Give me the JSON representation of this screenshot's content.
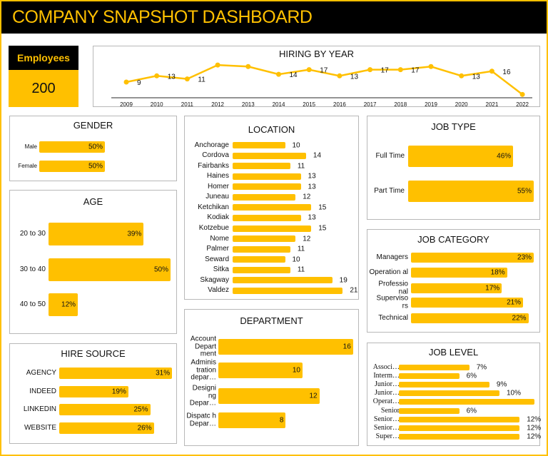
{
  "title": "COMPANY SNAPSHOT DASHBOARD",
  "accent": "#ffc000",
  "employees": {
    "label": "Employees",
    "value": "200"
  },
  "hiring": {
    "title": "HIRING BY YEAR",
    "years": [
      "2009",
      "2010",
      "2011",
      "2012",
      "2013",
      "2014",
      "2015",
      "2016",
      "2017",
      "2018",
      "2019",
      "2020",
      "2021",
      "2022"
    ],
    "values": [
      9,
      13,
      11,
      20,
      19,
      14,
      17,
      13,
      17,
      17,
      19,
      13,
      16,
      1
    ],
    "labels": [
      "9",
      "13",
      "11",
      "",
      "",
      "14",
      "17",
      "13",
      "17",
      "17",
      "",
      "13",
      "16",
      ""
    ]
  },
  "gender": {
    "title": "GENDER",
    "rows": [
      {
        "label": "Male",
        "value": 50,
        "text": "50%"
      },
      {
        "label": "Female",
        "value": 50,
        "text": "50%"
      }
    ]
  },
  "age": {
    "title": "AGE",
    "rows": [
      {
        "label": "20 to 30",
        "value": 39,
        "text": "39%"
      },
      {
        "label": "30 to 40",
        "value": 50,
        "text": "50%"
      },
      {
        "label": "40 to 50",
        "value": 12,
        "text": "12%"
      }
    ]
  },
  "hire_source": {
    "title": "HIRE SOURCE",
    "rows": [
      {
        "label": "AGENCY",
        "value": 31,
        "text": "31%"
      },
      {
        "label": "INDEED",
        "value": 19,
        "text": "19%"
      },
      {
        "label": "LINKEDIN",
        "value": 25,
        "text": "25%"
      },
      {
        "label": "WEBSITE",
        "value": 26,
        "text": "26%"
      }
    ]
  },
  "location": {
    "title": "LOCATION",
    "rows": [
      {
        "label": "Anchorage",
        "value": 10,
        "text": "10"
      },
      {
        "label": "Cordova",
        "value": 14,
        "text": "14"
      },
      {
        "label": "Fairbanks",
        "value": 11,
        "text": "11"
      },
      {
        "label": "Haines",
        "value": 13,
        "text": "13"
      },
      {
        "label": "Homer",
        "value": 13,
        "text": "13"
      },
      {
        "label": "Juneau",
        "value": 12,
        "text": "12"
      },
      {
        "label": "Ketchikan",
        "value": 15,
        "text": "15"
      },
      {
        "label": "Kodiak",
        "value": 13,
        "text": "13"
      },
      {
        "label": "Kotzebue",
        "value": 15,
        "text": "15"
      },
      {
        "label": "Nome",
        "value": 12,
        "text": "12"
      },
      {
        "label": "Palmer",
        "value": 11,
        "text": "11"
      },
      {
        "label": "Seward",
        "value": 10,
        "text": "10"
      },
      {
        "label": "Sitka",
        "value": 11,
        "text": "11"
      },
      {
        "label": "Skagway",
        "value": 19,
        "text": "19"
      },
      {
        "label": "Valdez",
        "value": 21,
        "text": "21"
      }
    ]
  },
  "department": {
    "title": "DEPARTMENT",
    "rows": [
      {
        "label": "Account Depart ment",
        "value": 16,
        "text": "16"
      },
      {
        "label": "Adminis tration depar…",
        "value": 10,
        "text": "10"
      },
      {
        "label": "Designi ng Depar…",
        "value": 12,
        "text": "12"
      },
      {
        "label": "Dispatc h Depar…",
        "value": 8,
        "text": "8"
      }
    ]
  },
  "job_type": {
    "title": "JOB TYPE",
    "rows": [
      {
        "label": "Full Time",
        "value": 46,
        "text": "46%"
      },
      {
        "label": "Part Time",
        "value": 55,
        "text": "55%"
      }
    ]
  },
  "job_category": {
    "title": "JOB CATEGORY",
    "rows": [
      {
        "label": "Managers",
        "value": 23,
        "text": "23%"
      },
      {
        "label": "Operation al",
        "value": 18,
        "text": "18%"
      },
      {
        "label": "Professio nal",
        "value": 17,
        "text": "17%"
      },
      {
        "label": "Superviso rs",
        "value": 21,
        "text": "21%"
      },
      {
        "label": "Technical",
        "value": 22,
        "text": "22%"
      }
    ]
  },
  "job_level": {
    "title": "JOB LEVEL",
    "rows": [
      {
        "label": "Associ…",
        "value": 7,
        "text": "7%"
      },
      {
        "label": "Interm…",
        "value": 6,
        "text": "6%"
      },
      {
        "label": "Junior…",
        "value": 9,
        "text": "9%"
      },
      {
        "label": "Junior…",
        "value": 10,
        "text": "10%"
      },
      {
        "label": "Operat…",
        "value": 13.5,
        "text": ""
      },
      {
        "label": "Senior",
        "value": 6,
        "text": "6%"
      },
      {
        "label": "Senior…",
        "value": 12,
        "text": "12%"
      },
      {
        "label": "Senior…",
        "value": 12,
        "text": "12%"
      },
      {
        "label": "Super…",
        "value": 12,
        "text": "12%"
      }
    ]
  }
}
